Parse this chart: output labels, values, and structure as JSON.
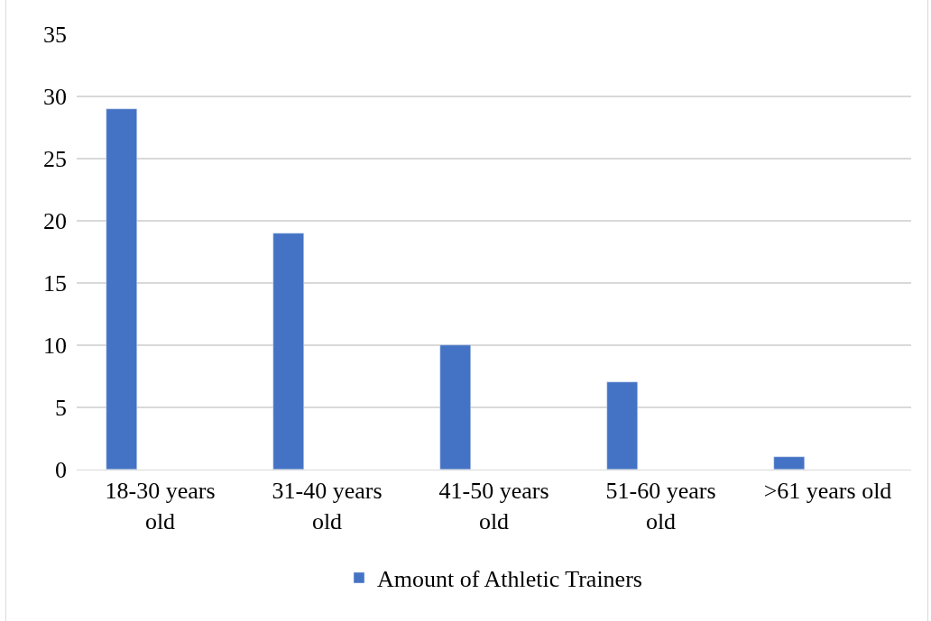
{
  "chart_data": {
    "type": "bar",
    "categories": [
      "18-30 years old",
      "31-40 years old",
      "41-50 years old",
      "51-60 years old",
      ">61 years old"
    ],
    "series": [
      {
        "name": "Amount of Athletic Trainers",
        "color": "#4472c4",
        "values": [
          29,
          19,
          10,
          7,
          1
        ]
      }
    ],
    "ylim": [
      0,
      35
    ],
    "yticks": [
      0,
      5,
      10,
      15,
      20,
      25,
      30,
      35
    ],
    "grid": "y",
    "legend": "bottom"
  }
}
